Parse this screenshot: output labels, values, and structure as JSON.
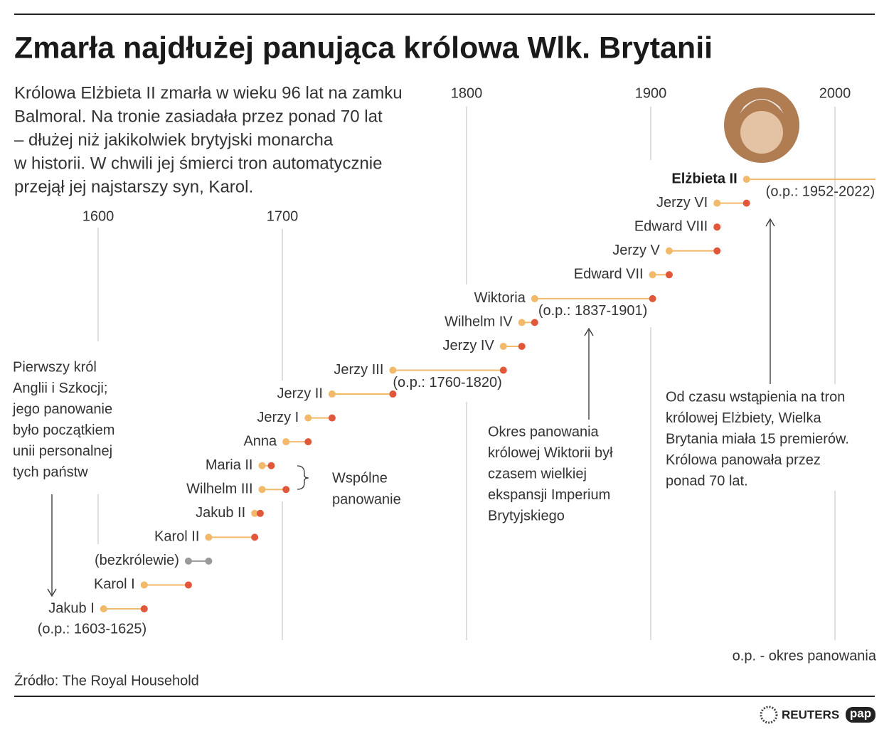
{
  "chart_data": {
    "type": "timeline",
    "title": "Zmarła najdłużej panująca królowa Wlk. Brytanii",
    "subtitle": [
      "Królowa Elżbieta II zmarła w wieku 96 lat na zamku",
      "Balmoral.  Na tronie zasiadała przez ponad 70 lat",
      "– dłużej niż jakikolwiek brytyjski monarcha",
      "w historii. W chwili jej śmierci tron automatycznie",
      "przejął jej najstarszy syn, Karol."
    ],
    "xlim": [
      1600,
      2022
    ],
    "xticks": [
      1600,
      1700,
      1800,
      1900,
      2000
    ],
    "start_color": "#f2b96b",
    "end_color": "#e2573a",
    "interregnum_color": "#9a9a9a",
    "reigns": [
      {
        "name": "Jakub I",
        "start": 1603,
        "end": 1625,
        "note": "(o.p.: 1603-1625)"
      },
      {
        "name": "Karol I",
        "start": 1625,
        "end": 1649
      },
      {
        "name": "(bezkrólewie)",
        "start": 1649,
        "end": 1660,
        "interregnum": true
      },
      {
        "name": "Karol II",
        "start": 1660,
        "end": 1685
      },
      {
        "name": "Jakub II",
        "start": 1685,
        "end": 1688
      },
      {
        "name": "Wilhelm III",
        "start": 1689,
        "end": 1702
      },
      {
        "name": "Maria II",
        "start": 1689,
        "end": 1694
      },
      {
        "name": "Anna",
        "start": 1702,
        "end": 1714
      },
      {
        "name": "Jerzy I",
        "start": 1714,
        "end": 1727
      },
      {
        "name": "Jerzy II",
        "start": 1727,
        "end": 1760
      },
      {
        "name": "Jerzy III",
        "start": 1760,
        "end": 1820,
        "note": "(o.p.: 1760-1820)"
      },
      {
        "name": "Jerzy IV",
        "start": 1820,
        "end": 1830
      },
      {
        "name": "Wilhelm IV",
        "start": 1830,
        "end": 1837
      },
      {
        "name": "Wiktoria",
        "start": 1837,
        "end": 1901,
        "note": "(o.p.: 1837-1901)"
      },
      {
        "name": "Edward VII",
        "start": 1901,
        "end": 1910
      },
      {
        "name": "Jerzy V",
        "start": 1910,
        "end": 1936
      },
      {
        "name": "Edward VIII",
        "start": 1936,
        "end": 1936
      },
      {
        "name": "Jerzy VI",
        "start": 1936,
        "end": 1952
      },
      {
        "name": "Elżbieta II",
        "start": 1952,
        "end": 2022,
        "note": "(o.p.: 1952-2022)",
        "bold": true
      }
    ],
    "annotations": {
      "first_king": [
        "Pierwszy król",
        "Anglii i Szkocji;",
        "jego panowanie",
        "było początkiem",
        "unii personalnej",
        "tych państw"
      ],
      "joint": [
        "Wspólne",
        "panowanie"
      ],
      "victoria": [
        "Okres panowania",
        "królowej Wiktorii był",
        "czasem wielkiej",
        "ekspansji Imperium",
        "Brytyjskiego"
      ],
      "elizabeth": [
        "Od czasu wstąpienia na tron",
        "królowej Elżbiety, Wielka",
        "Brytania miała 15 premierów.",
        "Królowa panowała przez",
        "ponad 70 lat."
      ]
    },
    "legend_note": "o.p. - okres panowania",
    "source": "Źródło: The Royal Household",
    "logos": [
      "REUTERS",
      "pap"
    ]
  }
}
